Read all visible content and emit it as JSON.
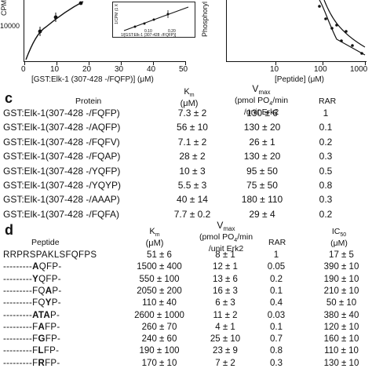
{
  "panel_c": {
    "letter": "c",
    "headers": {
      "protein": "Protein",
      "km": "K",
      "km_sub": "m",
      "km_unit": "(μM)",
      "vmax": "V",
      "vmax_sub": "max",
      "vmax_unit1": "(pmol PO",
      "vmax_unit1_sub": "4",
      "vmax_unit1_end": "/min",
      "vmax_unit2": "/unit Erk2",
      "rar": "RAR"
    },
    "rows": [
      {
        "protein": "GST:Elk-1(307-428 -/FQFP)",
        "km": "7.3 ± 2",
        "vmax": "130 ± 6",
        "rar": "1"
      },
      {
        "protein": "GST:Elk-1(307-428 -/AQFP)",
        "km": "56 ± 10",
        "vmax": "130 ± 20",
        "rar": "0.1"
      },
      {
        "protein": "GST:Elk-1(307-428 -/FQFV)",
        "km": "7.1 ± 2",
        "vmax": "26 ± 1",
        "rar": "0.2"
      },
      {
        "protein": "GST:Elk-1(307-428 -/FQAP)",
        "km": "28 ± 2",
        "vmax": "130 ± 20",
        "rar": "0.3"
      },
      {
        "protein": "GST:Elk-1(307-428 -/YQFP)",
        "km": "10 ± 3",
        "vmax": "95 ± 50",
        "rar": "0.5"
      },
      {
        "protein": "GST:Elk-1(307-428 -/YQYP)",
        "km": "5.5 ± 3",
        "vmax": "75 ± 50",
        "rar": "0.8"
      },
      {
        "protein": "GST:Elk-1(307-428 -/AAAP)",
        "km": "40 ± 14",
        "vmax": "180 ± 110",
        "rar": "0.3"
      },
      {
        "protein": "GST:Elk-1(307-428 -/FQFA)",
        "km": "7.7 ± 0.2",
        "vmax": "29 ± 4",
        "rar": "0.2"
      }
    ]
  },
  "panel_d": {
    "letter": "d",
    "headers": {
      "peptide": "Peptide",
      "km": "K",
      "km_sub": "m",
      "km_unit": "(μM)",
      "vmax": "V",
      "vmax_sub": "max",
      "vmax_unit1": "(pmol PO",
      "vmax_unit1_sub": "4",
      "vmax_unit1_end": "/min",
      "vmax_unit2": "/unit Erk2",
      "rar": "RAR",
      "ic": "IC",
      "ic_sub": "50",
      "ic_unit": "(μM)"
    },
    "rows": [
      {
        "prefix": "RRPRSPAKLSFQFPS",
        "bold": "",
        "suffix": "",
        "km": "51 ± 6",
        "vmax": "8 ± 1",
        "rar": "1",
        "ic50": "17 ± 5"
      },
      {
        "prefix": "---------",
        "bold": "A",
        "suffix": "QFP-",
        "km": "1500 ± 400",
        "vmax": "12 ± 1",
        "rar": "0.05",
        "ic50": "390 ± 10"
      },
      {
        "prefix": "---------",
        "bold": "Y",
        "suffix": "QFP-",
        "km": "550 ± 100",
        "vmax": "13 ± 6",
        "rar": "0.2",
        "ic50": "190 ± 10"
      },
      {
        "prefix": "---------FQ",
        "bold": "A",
        "suffix": "P-",
        "km": "2050 ± 200",
        "vmax": "16 ± 3",
        "rar": "0.1",
        "ic50": "210 ± 10"
      },
      {
        "prefix": "---------FQ",
        "bold": "Y",
        "suffix": "P-",
        "km": "110 ± 40",
        "vmax": "6 ± 3",
        "rar": "0.4",
        "ic50": "50 ± 10"
      },
      {
        "prefix": "---------",
        "bold": "ATA",
        "suffix": "P-",
        "km": "2600 ± 1000",
        "vmax": "11 ± 2",
        "rar": "0.03",
        "ic50": "380 ± 40"
      },
      {
        "prefix": "---------F",
        "bold": "A",
        "suffix": "FP-",
        "km": "260 ± 70",
        "vmax": "4 ± 1",
        "rar": "0.1",
        "ic50": "120 ± 10"
      },
      {
        "prefix": "---------F",
        "bold": "G",
        "suffix": "FP-",
        "km": "240 ± 60",
        "vmax": "25 ± 10",
        "rar": "0.7",
        "ic50": "160 ± 10"
      },
      {
        "prefix": "---------F",
        "bold": "L",
        "suffix": "FP-",
        "km": "190 ± 100",
        "vmax": "23 ± 9",
        "rar": "0.8",
        "ic50": "110 ± 10"
      },
      {
        "prefix": "---------F",
        "bold": "R",
        "suffix": "FP-",
        "km": "170 ± 10",
        "vmax": "7 ± 2",
        "rar": "0.3",
        "ic50": "130 ± 10"
      }
    ]
  },
  "plot_a": {
    "y_axis_label": "CPM",
    "y_tick": "10000",
    "x_ticks": [
      "0",
      "10",
      "20",
      "30",
      "40",
      "50"
    ],
    "x_label": "[GST:Elk-1 (307-428 -/FQFP)] (μM)",
    "inset": {
      "y_label": "1/CPM (1 X",
      "x_ticks": [
        "0.10",
        "0.20"
      ],
      "x_label": "1/[GST:Elk-1 (307-428 -/FQFP)]"
    }
  },
  "plot_b": {
    "y_axis_label": "Phosphoryl",
    "x_ticks": [
      "10",
      "100",
      "1000"
    ],
    "x_label": "[Peptide] (μM)"
  }
}
